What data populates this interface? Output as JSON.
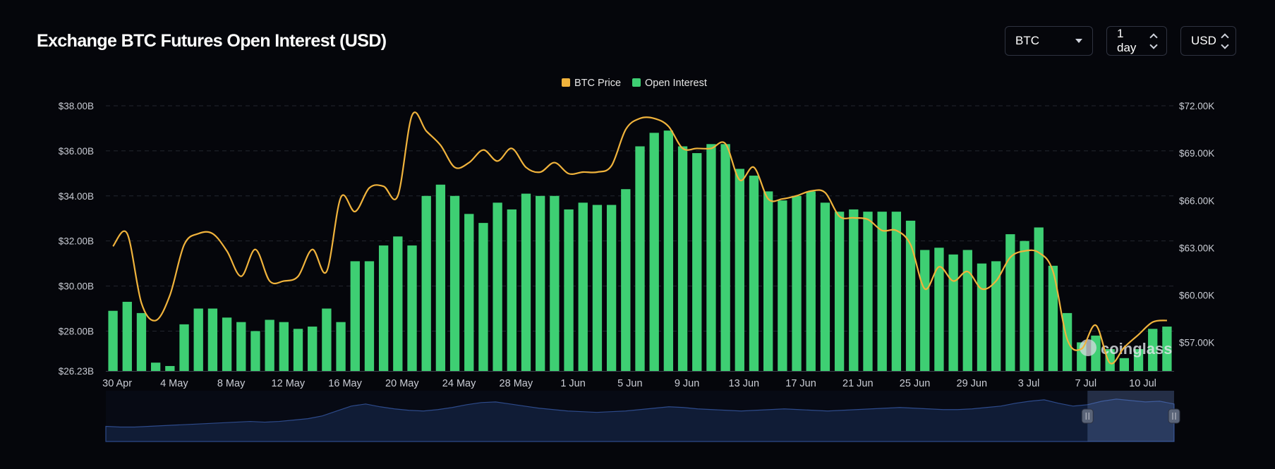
{
  "header": {
    "title": "Exchange BTC Futures Open Interest (USD)",
    "controls": {
      "symbol": "BTC",
      "interval": "1 day",
      "currency": "USD"
    }
  },
  "watermark": "coinglass",
  "colors": {
    "background": "#05060b",
    "open_interest": "#3ecf73",
    "btc_price": "#f0b33c",
    "navigator_fill": "#101c36",
    "navigator_line": "#2d4a8a"
  },
  "chart_data": {
    "type": "bar",
    "legend": {
      "placement": "top-center",
      "entries": [
        "BTC Price",
        "Open Interest"
      ]
    },
    "x_tick_labels": [
      "30 Apr",
      "4 May",
      "8 May",
      "12 May",
      "16 May",
      "20 May",
      "24 May",
      "28 May",
      "1 Jun",
      "5 Jun",
      "9 Jun",
      "13 Jun",
      "17 Jun",
      "21 Jun",
      "25 Jun",
      "29 Jun",
      "3 Jul",
      "7 Jul",
      "10 Jul"
    ],
    "y_left": {
      "tick_labels": [
        "$26.23B",
        "$28.00B",
        "$30.00B",
        "$32.00B",
        "$34.00B",
        "$36.00B",
        "$38.00B"
      ],
      "ticks": [
        26.23,
        28,
        30,
        32,
        34,
        36,
        38
      ],
      "range": [
        26.23,
        38.0
      ]
    },
    "y_right": {
      "tick_labels": [
        "$57.00K",
        "$60.00K",
        "$63.00K",
        "$66.00K",
        "$69.00K",
        "$72.00K"
      ],
      "ticks": [
        57,
        60,
        63,
        66,
        69,
        72
      ],
      "range": [
        55.2,
        72.0
      ]
    },
    "grid": true,
    "series": [
      {
        "name": "Open Interest",
        "type": "bar",
        "axis": "left",
        "values": [
          28.9,
          29.3,
          28.8,
          26.6,
          26.45,
          28.3,
          29.0,
          29.0,
          28.6,
          28.4,
          28.0,
          28.5,
          28.4,
          28.1,
          28.2,
          29.0,
          28.4,
          31.1,
          31.1,
          31.8,
          32.2,
          31.8,
          34.0,
          34.5,
          34.0,
          33.2,
          32.8,
          33.7,
          33.4,
          34.1,
          34.0,
          34.0,
          33.4,
          33.7,
          33.6,
          33.6,
          34.3,
          36.2,
          36.8,
          36.9,
          36.2,
          35.9,
          36.3,
          36.3,
          35.2,
          34.9,
          34.2,
          33.8,
          34.0,
          34.2,
          33.7,
          33.3,
          33.4,
          33.3,
          33.3,
          33.3,
          32.9,
          31.6,
          31.7,
          31.4,
          31.6,
          31.0,
          31.1,
          32.3,
          32.0,
          32.6,
          30.9,
          28.8,
          27.5,
          27.8,
          27.2,
          26.8,
          27.2,
          28.1,
          28.2
        ]
      },
      {
        "name": "BTC Price",
        "type": "line",
        "axis": "right",
        "values": [
          63.1,
          63.9,
          59.5,
          58.4,
          60.0,
          63.2,
          63.9,
          63.9,
          62.8,
          61.2,
          62.9,
          60.9,
          60.9,
          61.2,
          62.9,
          61.5,
          66.2,
          65.3,
          66.8,
          66.9,
          66.3,
          71.4,
          70.4,
          69.5,
          68.1,
          68.4,
          69.2,
          68.5,
          69.3,
          68.1,
          67.8,
          68.4,
          67.7,
          67.8,
          67.8,
          68.2,
          70.5,
          71.2,
          71.2,
          70.7,
          69.3,
          69.3,
          69.3,
          69.6,
          67.3,
          68.1,
          66.1,
          66.1,
          66.3,
          66.6,
          66.5,
          65.0,
          64.9,
          64.8,
          64.1,
          64.1,
          63.2,
          60.4,
          61.8,
          60.9,
          61.5,
          60.4,
          60.9,
          62.4,
          62.8,
          62.7,
          61.5,
          57.2,
          56.6,
          58.1,
          55.7,
          56.7,
          57.5,
          58.3,
          58.4
        ]
      }
    ],
    "navigator": {
      "values": [
        28.4,
        28.3,
        28.3,
        28.4,
        28.5,
        28.6,
        28.7,
        28.8,
        28.9,
        29.0,
        29.1,
        29.0,
        29.1,
        29.3,
        29.5,
        29.9,
        30.6,
        31.3,
        31.6,
        31.2,
        30.9,
        30.7,
        30.6,
        30.8,
        31.1,
        31.5,
        31.8,
        31.9,
        31.6,
        31.3,
        31.0,
        30.8,
        30.6,
        30.5,
        30.4,
        30.5,
        30.6,
        30.8,
        31.0,
        31.2,
        31.1,
        30.9,
        30.8,
        30.7,
        30.6,
        30.7,
        30.8,
        30.9,
        30.8,
        30.7,
        30.6,
        30.7,
        30.8,
        30.9,
        31.0,
        31.1,
        31.0,
        30.9,
        30.8,
        30.8,
        30.9,
        31.1,
        31.3,
        31.7,
        32.0,
        32.2,
        31.7,
        31.3,
        31.5,
        32.0,
        32.3,
        32.1,
        31.9,
        32.0,
        31.6
      ],
      "selected_range": [
        68,
        75
      ]
    }
  }
}
